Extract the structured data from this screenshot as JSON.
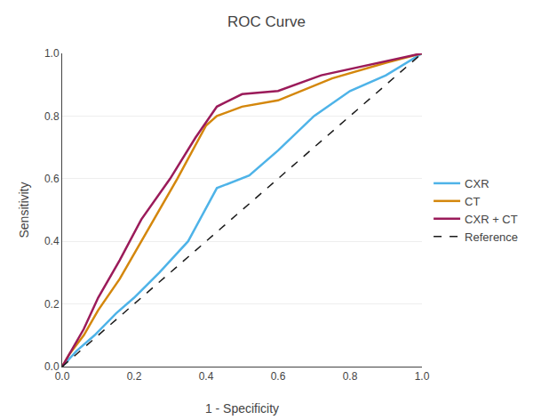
{
  "chart_data": {
    "type": "line",
    "title": "ROC Curve",
    "x_label": "1 - Specificity",
    "y_label": "Sensitivity",
    "xlim": [
      0.0,
      1.0
    ],
    "ylim": [
      0.0,
      1.0
    ],
    "xticks": [
      {
        "value": 0.0,
        "label": "0.0"
      },
      0.2,
      0.4,
      0.6,
      0.8,
      {
        "value": 1.0,
        "label": "1.0"
      }
    ],
    "yticks": [
      {
        "value": 0.0,
        "label": "0.0"
      },
      0.2,
      0.4,
      0.6,
      0.8,
      {
        "value": 1.0,
        "label": "1.0"
      }
    ],
    "grid": "y",
    "legend": "right",
    "series": [
      {
        "name": "CXR",
        "color": "#4EB3E8",
        "line_style": "solid",
        "x": [
          0.0,
          0.04,
          0.09,
          0.15,
          0.2,
          0.27,
          0.35,
          0.43,
          0.52,
          0.6,
          0.7,
          0.8,
          0.9,
          1.0
        ],
        "values": [
          0.0,
          0.05,
          0.1,
          0.17,
          0.22,
          0.3,
          0.4,
          0.57,
          0.61,
          0.69,
          0.8,
          0.88,
          0.93,
          1.0
        ]
      },
      {
        "name": "CT",
        "color": "#D4870C",
        "line_style": "solid",
        "x": [
          0.0,
          0.02,
          0.06,
          0.1,
          0.16,
          0.2,
          0.26,
          0.32,
          0.4,
          0.43,
          0.5,
          0.6,
          0.75,
          0.9,
          1.0
        ],
        "values": [
          0.0,
          0.04,
          0.1,
          0.18,
          0.28,
          0.36,
          0.48,
          0.6,
          0.77,
          0.8,
          0.83,
          0.85,
          0.92,
          0.97,
          1.0
        ]
      },
      {
        "name": "CXR + CT",
        "color": "#9B1B5A",
        "line_style": "solid",
        "x": [
          0.0,
          0.02,
          0.06,
          0.1,
          0.16,
          0.22,
          0.3,
          0.37,
          0.43,
          0.5,
          0.6,
          0.72,
          0.88,
          1.0
        ],
        "values": [
          0.0,
          0.04,
          0.12,
          0.22,
          0.34,
          0.47,
          0.6,
          0.73,
          0.83,
          0.87,
          0.88,
          0.93,
          0.97,
          1.0
        ]
      },
      {
        "name": "Reference",
        "color": "#1A1A1A",
        "line_style": "dashed",
        "x": [
          0.0,
          1.0
        ],
        "values": [
          0.0,
          1.0
        ]
      }
    ]
  }
}
